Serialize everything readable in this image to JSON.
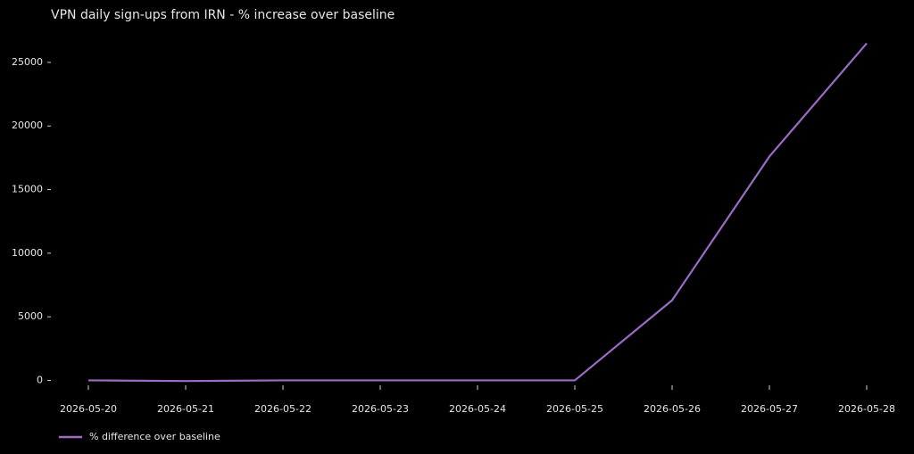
{
  "chart_data": {
    "type": "line",
    "title": "VPN daily sign-ups from IRN - % increase over baseline",
    "x": [
      "2026-05-20",
      "2026-05-21",
      "2026-05-22",
      "2026-05-23",
      "2026-05-24",
      "2026-05-25",
      "2026-05-26",
      "2026-05-27",
      "2026-05-28"
    ],
    "series": [
      {
        "name": "% difference over baseline",
        "color": "#9b6cc4",
        "values": [
          0,
          -50,
          0,
          0,
          0,
          0,
          6300,
          17600,
          26500
        ]
      }
    ],
    "ylim": [
      -1300,
      27800
    ],
    "yticks": [
      0,
      5000,
      10000,
      15000,
      20000,
      25000
    ],
    "grid": false,
    "legend": "lower left"
  }
}
